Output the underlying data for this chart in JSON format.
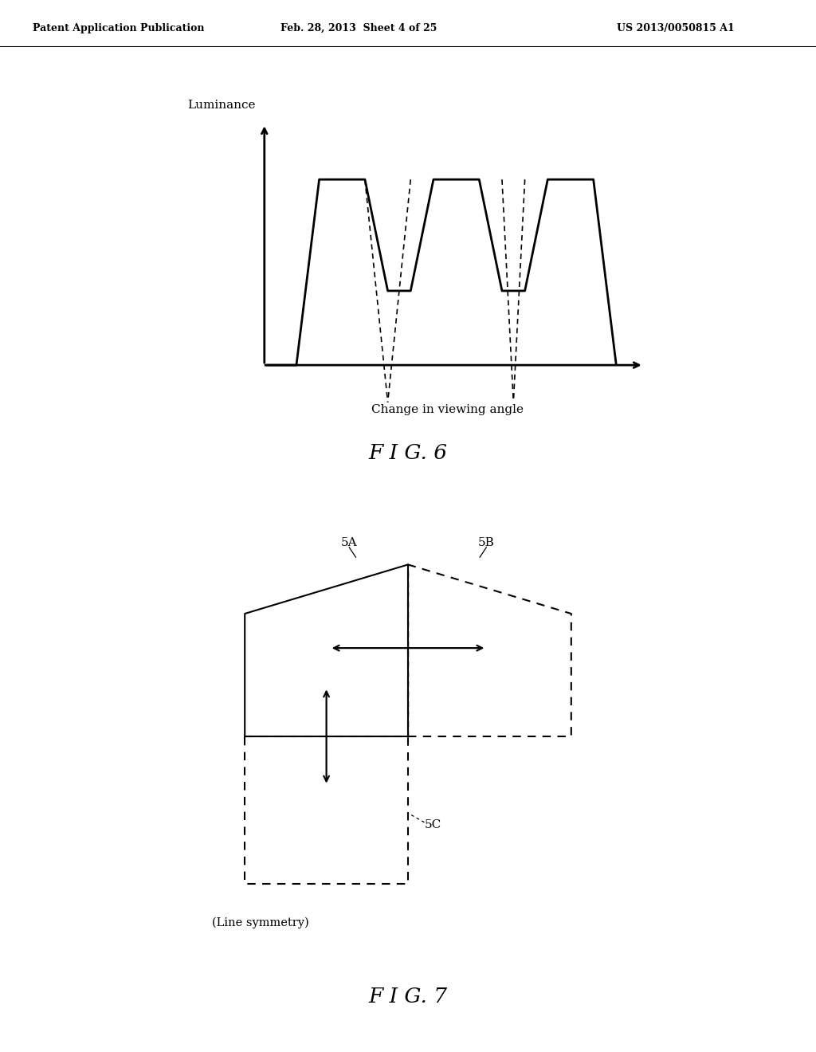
{
  "bg_color": "#ffffff",
  "header_left": "Patent Application Publication",
  "header_mid": "Feb. 28, 2013  Sheet 4 of 25",
  "header_right": "US 2013/0050815 A1",
  "fig6_title": "F I G. 6",
  "fig7_title": "F I G. 7",
  "luminance_label": "Luminance",
  "xaxis_label": "Change in viewing angle",
  "line_symmetry_label": "(Line symmetry)",
  "label_5A": "5A",
  "label_5B": "5B",
  "label_5C": "5C"
}
